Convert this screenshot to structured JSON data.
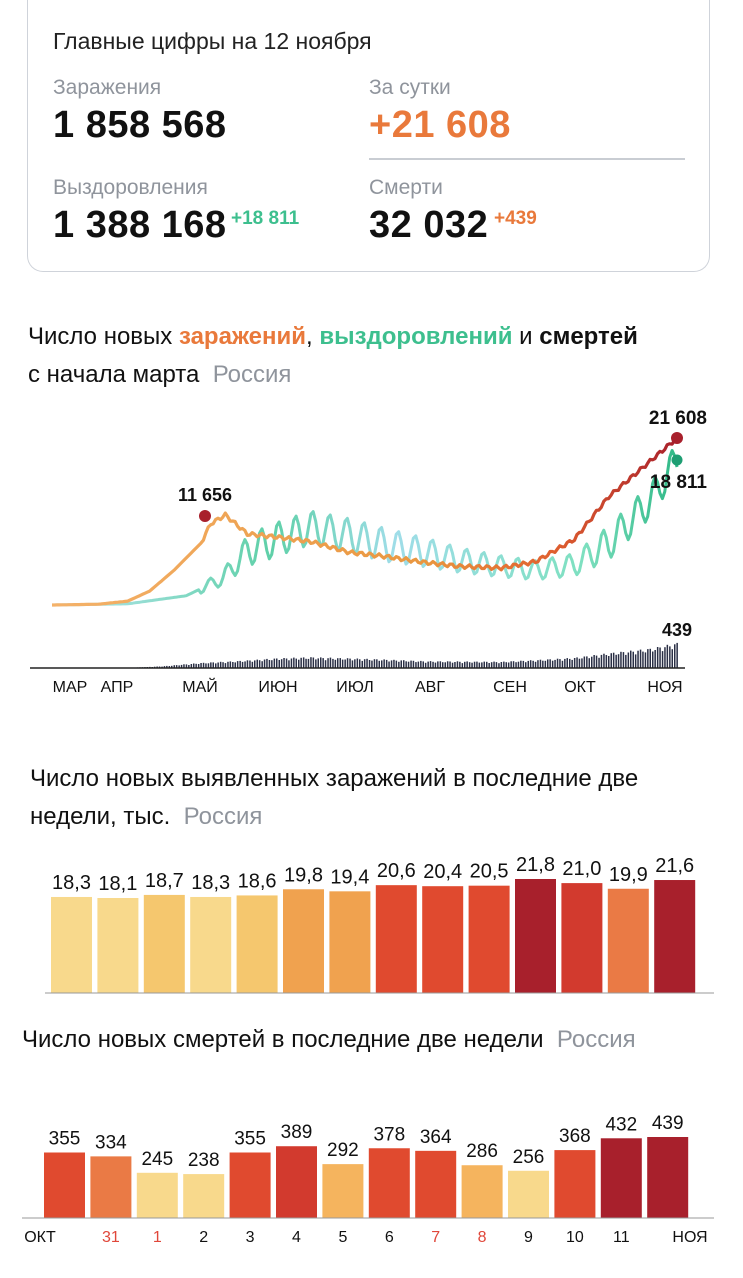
{
  "summary": {
    "title": "Главные цифры на 12 ноября",
    "infections_label": "Заражения",
    "infections_value": "1 858 568",
    "daily_label": "За сутки",
    "daily_value": "+21 608",
    "recoveries_label": "Выздоровления",
    "recoveries_value": "1 388 168",
    "recoveries_delta": "+18 811",
    "deaths_label": "Смерти",
    "deaths_value": "32 032",
    "deaths_delta": "+439"
  },
  "colors": {
    "infections": "#e9793b",
    "recoveries": "#3dbf8e",
    "deaths": "#2a2f45",
    "region": "#8f949c"
  },
  "chart_data": [
    {
      "type": "line",
      "title_parts": [
        "Число новых ",
        "заражений",
        ", ",
        "выздоровлений",
        " и ",
        "смертей"
      ],
      "title_line2": "с начала марта",
      "region": "Россия",
      "x_tick_labels": [
        "МАР",
        "АПР",
        "МАЙ",
        "ИЮН",
        "ИЮЛ",
        "АВГ",
        "СЕН",
        "ОКТ",
        "НОЯ"
      ],
      "annotations": {
        "infections_peak_spring": "11 656",
        "infections_last": "21 608",
        "recoveries_last": "18 811",
        "deaths_last": "439"
      },
      "series": [
        {
          "name": "заражений",
          "monthly_points": [
            [
              "2020-03-01",
              0
            ],
            [
              "2020-03-20",
              100
            ],
            [
              "2020-04-01",
              500
            ],
            [
              "2020-04-10",
              1800
            ],
            [
              "2020-04-20",
              4500
            ],
            [
              "2020-05-01",
              8000
            ],
            [
              "2020-05-05",
              10500
            ],
            [
              "2020-05-11",
              11656
            ],
            [
              "2020-05-20",
              9200
            ],
            [
              "2020-06-01",
              8800
            ],
            [
              "2020-06-15",
              8200
            ],
            [
              "2020-07-01",
              6800
            ],
            [
              "2020-07-15",
              6300
            ],
            [
              "2020-08-01",
              5500
            ],
            [
              "2020-08-15",
              5000
            ],
            [
              "2020-09-01",
              4800
            ],
            [
              "2020-09-15",
              5600
            ],
            [
              "2020-10-01",
              8500
            ],
            [
              "2020-10-15",
              14000
            ],
            [
              "2020-11-01",
              18600
            ],
            [
              "2020-11-12",
              21608
            ]
          ]
        },
        {
          "name": "выздоровлений",
          "monthly_points": [
            [
              "2020-03-01",
              0
            ],
            [
              "2020-04-01",
              150
            ],
            [
              "2020-04-25",
              1200
            ],
            [
              "2020-05-10",
              3500
            ],
            [
              "2020-05-20",
              7000
            ],
            [
              "2020-06-01",
              8500
            ],
            [
              "2020-06-15",
              10000
            ],
            [
              "2020-07-01",
              9000
            ],
            [
              "2020-07-15",
              7800
            ],
            [
              "2020-08-01",
              6800
            ],
            [
              "2020-08-15",
              5800
            ],
            [
              "2020-09-01",
              5000
            ],
            [
              "2020-09-15",
              4500
            ],
            [
              "2020-10-01",
              5200
            ],
            [
              "2020-10-15",
              8000
            ],
            [
              "2020-11-01",
              13500
            ],
            [
              "2020-11-12",
              18811
            ]
          ]
        },
        {
          "name": "смертей",
          "monthly_points": [
            [
              "2020-03-01",
              0
            ],
            [
              "2020-04-01",
              5
            ],
            [
              "2020-04-15",
              30
            ],
            [
              "2020-05-01",
              90
            ],
            [
              "2020-05-15",
              120
            ],
            [
              "2020-06-01",
              170
            ],
            [
              "2020-06-15",
              190
            ],
            [
              "2020-07-01",
              170
            ],
            [
              "2020-07-15",
              150
            ],
            [
              "2020-08-01",
              120
            ],
            [
              "2020-09-01",
              110
            ],
            [
              "2020-09-15",
              140
            ],
            [
              "2020-10-01",
              180
            ],
            [
              "2020-10-15",
              260
            ],
            [
              "2020-11-01",
              340
            ],
            [
              "2020-11-12",
              439
            ]
          ]
        }
      ]
    },
    {
      "type": "bar",
      "title_line1": "Число новых выявленных заражений в последние две",
      "title_line2": "недели, тыс.",
      "region": "Россия",
      "values": [
        "18,3",
        "18,1",
        "18,7",
        "18,3",
        "18,6",
        "19,8",
        "19,4",
        "20,6",
        "20,4",
        "20,5",
        "21,8",
        "21,0",
        "19,9",
        "21,6"
      ],
      "numeric_values": [
        18.3,
        18.1,
        18.7,
        18.3,
        18.6,
        19.8,
        19.4,
        20.6,
        20.4,
        20.5,
        21.8,
        21.0,
        19.9,
        21.6
      ],
      "colors": [
        "#f8d98c",
        "#f8d98c",
        "#f5c76e",
        "#f8d98c",
        "#f5c76e",
        "#f0a24f",
        "#f0a24f",
        "#e04a2f",
        "#e04a2f",
        "#e04a2f",
        "#a8202c",
        "#d23a2e",
        "#ea7a45",
        "#a8202c"
      ]
    },
    {
      "type": "bar",
      "title": "Число новых смертей в последние две недели",
      "region": "Россия",
      "values": [
        355,
        334,
        245,
        238,
        355,
        389,
        292,
        378,
        364,
        286,
        256,
        368,
        432,
        439
      ],
      "colors": [
        "#e04a2f",
        "#ea7a45",
        "#f8d98c",
        "#f8d98c",
        "#e04a2f",
        "#d23a2e",
        "#f5b45e",
        "#e04a2f",
        "#e04a2f",
        "#f5b45e",
        "#f8d98c",
        "#e04a2f",
        "#a8202c",
        "#a8202c"
      ],
      "x_tick_labels": [
        "ОКТ",
        "31",
        "1",
        "2",
        "3",
        "4",
        "5",
        "6",
        "7",
        "8",
        "9",
        "10",
        "11",
        "НОЯ"
      ],
      "x_tick_colors": [
        "#111111",
        "#e0473a",
        "#e0473a",
        "#111111",
        "#111111",
        "#111111",
        "#111111",
        "#111111",
        "#e0473a",
        "#e0473a",
        "#111111",
        "#111111",
        "#111111",
        "#111111"
      ]
    }
  ]
}
